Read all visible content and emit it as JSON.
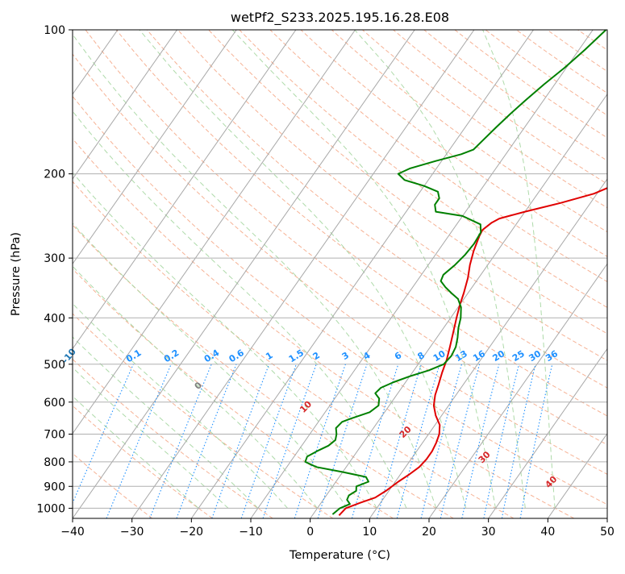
{
  "chart_data": {
    "type": "line",
    "title": "wetPf2_S233.2025.195.16.28.E08",
    "xlabel": "Temperature (°C)",
    "ylabel": "Pressure (hPa)",
    "xlim": [
      -40,
      50
    ],
    "ylim": [
      1050,
      100
    ],
    "y_scale": "log",
    "grid": true,
    "x_ticks": [
      "−40",
      "−30",
      "−20",
      "−10",
      "0",
      "10",
      "20",
      "30",
      "40",
      "50"
    ],
    "y_ticks": [
      "100",
      "200",
      "300",
      "400",
      "500",
      "600",
      "700",
      "800",
      "900",
      "1000"
    ],
    "series": [
      {
        "color": "#e00000",
        "points": [
          [
            4.5,
            1035
          ],
          [
            4.8,
            1000
          ],
          [
            6.5,
            975
          ],
          [
            8.5,
            950
          ],
          [
            9.5,
            920
          ],
          [
            10.5,
            880
          ],
          [
            11.5,
            850
          ],
          [
            12.3,
            820
          ],
          [
            12.6,
            790
          ],
          [
            12.6,
            760
          ],
          [
            12.3,
            730
          ],
          [
            11.8,
            700
          ],
          [
            10.8,
            670
          ],
          [
            9.0,
            640
          ],
          [
            7.5,
            610
          ],
          [
            6.5,
            580
          ],
          [
            5.8,
            550
          ],
          [
            5.0,
            520
          ],
          [
            4.3,
            490
          ],
          [
            3.3,
            460
          ],
          [
            2.2,
            430
          ],
          [
            1.0,
            400
          ],
          [
            0.0,
            375
          ],
          [
            -0.7,
            355
          ],
          [
            -1.8,
            330
          ],
          [
            -3.0,
            310
          ],
          [
            -4.0,
            290
          ],
          [
            -4.8,
            270
          ],
          [
            -5.0,
            262
          ],
          [
            -4.3,
            253
          ],
          [
            -3.5,
            248
          ],
          [
            0,
            240
          ],
          [
            5,
            230
          ],
          [
            9.5,
            220
          ],
          [
            12.2,
            210
          ],
          [
            14.5,
            200
          ],
          [
            16.5,
            190
          ],
          [
            18.3,
            180
          ],
          [
            20.0,
            170
          ],
          [
            21.7,
            160
          ],
          [
            23.3,
            150
          ],
          [
            25.0,
            140
          ],
          [
            27.0,
            130
          ],
          [
            29.0,
            120
          ],
          [
            31.3,
            110
          ],
          [
            34.0,
            100
          ]
        ]
      },
      {
        "color": "#008000",
        "points": [
          [
            3.3,
            1030
          ],
          [
            3.8,
            1000
          ],
          [
            5.0,
            980
          ],
          [
            4.0,
            960
          ],
          [
            3.8,
            940
          ],
          [
            4.5,
            920
          ],
          [
            4.0,
            900
          ],
          [
            5.5,
            880
          ],
          [
            4.5,
            860
          ],
          [
            0,
            840
          ],
          [
            -5,
            820
          ],
          [
            -7.5,
            800
          ],
          [
            -7.8,
            780
          ],
          [
            -6.8,
            760
          ],
          [
            -5.5,
            740
          ],
          [
            -5.0,
            720
          ],
          [
            -5.5,
            700
          ],
          [
            -6.3,
            680
          ],
          [
            -6.0,
            660
          ],
          [
            -5.0,
            650
          ],
          [
            -2.5,
            630
          ],
          [
            -1.8,
            610
          ],
          [
            -2.5,
            590
          ],
          [
            -3.8,
            575
          ],
          [
            -3.5,
            560
          ],
          [
            -2.0,
            545
          ],
          [
            0,
            530
          ],
          [
            2.5,
            515
          ],
          [
            4.3,
            500
          ],
          [
            4.6,
            480
          ],
          [
            4.3,
            460
          ],
          [
            3.5,
            440
          ],
          [
            2.5,
            420
          ],
          [
            1.7,
            400
          ],
          [
            0.5,
            380
          ],
          [
            -1.0,
            365
          ],
          [
            -2.8,
            355
          ],
          [
            -4.5,
            345
          ],
          [
            -6.0,
            335
          ],
          [
            -6.3,
            325
          ],
          [
            -5.5,
            310
          ],
          [
            -5.0,
            295
          ],
          [
            -4.8,
            280
          ],
          [
            -5.0,
            265
          ],
          [
            -6.0,
            255
          ],
          [
            -10.0,
            245
          ],
          [
            -15.0,
            240
          ],
          [
            -16.0,
            232
          ],
          [
            -16.0,
            225
          ],
          [
            -17.0,
            218
          ],
          [
            -20.0,
            212
          ],
          [
            -24.0,
            206
          ],
          [
            -25.8,
            200
          ],
          [
            -24.5,
            195
          ],
          [
            -21.0,
            188
          ],
          [
            -17.5,
            182
          ],
          [
            -16.0,
            178
          ],
          [
            -15.5,
            170
          ],
          [
            -14.8,
            160
          ],
          [
            -14.0,
            150
          ],
          [
            -13.0,
            140
          ],
          [
            -11.8,
            130
          ],
          [
            -10.3,
            120
          ],
          [
            -9.0,
            110
          ],
          [
            -7.8,
            100
          ]
        ]
      }
    ],
    "annotations": {
      "dry_adiabats": [
        "-100",
        "-90",
        "-80",
        "-70",
        "-60",
        "-50",
        "-40",
        "-30",
        "-20",
        "-10"
      ],
      "dry_adiabat_color": "#1f77b4",
      "mixing_ratio": [
        "0.1",
        "0.2",
        "0.4",
        "0.6",
        "1",
        "1.5",
        "2",
        "3",
        "4",
        "6",
        "8",
        "10",
        "13",
        "16",
        "20",
        "25",
        "30",
        "36"
      ],
      "mixing_ratio_color": "#1e90ff",
      "moist_adiabats": [
        "0",
        "10",
        "20",
        "30",
        "40"
      ],
      "moist_adiabat_colors": [
        "#808080",
        "#d62728",
        "#d62728",
        "#d62728",
        "#d62728"
      ]
    }
  }
}
